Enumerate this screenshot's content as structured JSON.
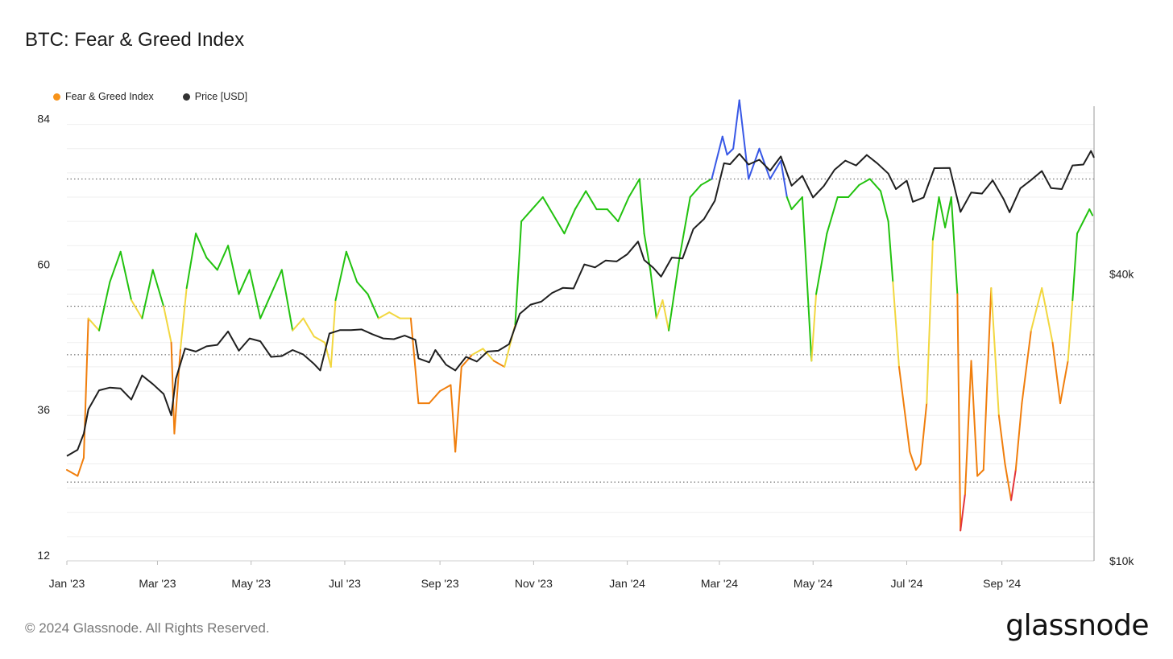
{
  "title": "BTC: Fear & Greed Index",
  "footer": "© 2024 Glassnode. All Rights Reserved.",
  "brand": "glassnode",
  "legend": [
    {
      "label": "Fear & Greed Index",
      "color": "#f7931a"
    },
    {
      "label": "Price [USD]",
      "color": "#333333"
    }
  ],
  "chart_data": {
    "type": "line",
    "title": "BTC: Fear & Greed Index",
    "x_ticks": [
      "Jan '23",
      "Mar '23",
      "May '23",
      "Jul '23",
      "Sep '23",
      "Nov '23",
      "Jan '24",
      "Mar '24",
      "May '24",
      "Jul '24",
      "Sep '24"
    ],
    "y_left": {
      "ticks": [
        12,
        36,
        60,
        84
      ],
      "range": [
        12,
        87
      ]
    },
    "y_right": {
      "ticks": [
        "$10k",
        "$40k"
      ],
      "tick_values": [
        10000,
        40000
      ],
      "scale": "log",
      "range": [
        10000,
        90000
      ]
    },
    "threshold_lines": [
      25,
      46,
      54,
      75
    ],
    "grid": true,
    "color_bands": [
      {
        "min": 0,
        "max": 25,
        "color": "#e3343b"
      },
      {
        "min": 25,
        "max": 46,
        "color": "#f07e0c"
      },
      {
        "min": 46,
        "max": 54,
        "color": "#f2d740"
      },
      {
        "min": 54,
        "max": 75,
        "color": "#22c20f"
      },
      {
        "min": 75,
        "max": 100,
        "color": "#3858e6"
      }
    ],
    "series": [
      {
        "name": "Fear & Greed Index",
        "axis": "left",
        "points": [
          [
            "2023-01-01",
            27
          ],
          [
            "2023-01-08",
            26
          ],
          [
            "2023-01-12",
            29
          ],
          [
            "2023-01-15",
            52
          ],
          [
            "2023-01-22",
            50
          ],
          [
            "2023-01-29",
            58
          ],
          [
            "2023-02-05",
            63
          ],
          [
            "2023-02-12",
            55
          ],
          [
            "2023-02-19",
            52
          ],
          [
            "2023-02-26",
            60
          ],
          [
            "2023-03-05",
            54
          ],
          [
            "2023-03-10",
            48
          ],
          [
            "2023-03-12",
            33
          ],
          [
            "2023-03-16",
            47
          ],
          [
            "2023-03-20",
            57
          ],
          [
            "2023-03-26",
            66
          ],
          [
            "2023-04-02",
            62
          ],
          [
            "2023-04-09",
            60
          ],
          [
            "2023-04-16",
            64
          ],
          [
            "2023-04-23",
            56
          ],
          [
            "2023-04-30",
            60
          ],
          [
            "2023-05-07",
            52
          ],
          [
            "2023-05-14",
            56
          ],
          [
            "2023-05-21",
            60
          ],
          [
            "2023-05-28",
            50
          ],
          [
            "2023-06-04",
            52
          ],
          [
            "2023-06-11",
            49
          ],
          [
            "2023-06-18",
            48
          ],
          [
            "2023-06-22",
            44
          ],
          [
            "2023-06-25",
            55
          ],
          [
            "2023-07-02",
            63
          ],
          [
            "2023-07-09",
            58
          ],
          [
            "2023-07-16",
            56
          ],
          [
            "2023-07-23",
            52
          ],
          [
            "2023-07-30",
            53
          ],
          [
            "2023-08-06",
            52
          ],
          [
            "2023-08-13",
            52
          ],
          [
            "2023-08-18",
            38
          ],
          [
            "2023-08-25",
            38
          ],
          [
            "2023-09-01",
            40
          ],
          [
            "2023-09-08",
            41
          ],
          [
            "2023-09-11",
            30
          ],
          [
            "2023-09-15",
            44
          ],
          [
            "2023-09-22",
            46
          ],
          [
            "2023-09-29",
            47
          ],
          [
            "2023-10-06",
            45
          ],
          [
            "2023-10-13",
            44
          ],
          [
            "2023-10-20",
            51
          ],
          [
            "2023-10-24",
            68
          ],
          [
            "2023-10-31",
            70
          ],
          [
            "2023-11-07",
            72
          ],
          [
            "2023-11-14",
            69
          ],
          [
            "2023-11-21",
            66
          ],
          [
            "2023-11-28",
            70
          ],
          [
            "2023-12-05",
            73
          ],
          [
            "2023-12-12",
            70
          ],
          [
            "2023-12-19",
            70
          ],
          [
            "2023-12-26",
            68
          ],
          [
            "2024-01-02",
            72
          ],
          [
            "2024-01-09",
            75
          ],
          [
            "2024-01-12",
            66
          ],
          [
            "2024-01-16",
            60
          ],
          [
            "2024-01-20",
            52
          ],
          [
            "2024-01-24",
            55
          ],
          [
            "2024-01-28",
            50
          ],
          [
            "2024-02-04",
            62
          ],
          [
            "2024-02-11",
            72
          ],
          [
            "2024-02-18",
            74
          ],
          [
            "2024-02-25",
            75
          ],
          [
            "2024-03-03",
            82
          ],
          [
            "2024-03-06",
            79
          ],
          [
            "2024-03-10",
            80
          ],
          [
            "2024-03-14",
            88
          ],
          [
            "2024-03-20",
            75
          ],
          [
            "2024-03-27",
            80
          ],
          [
            "2024-04-03",
            75
          ],
          [
            "2024-04-10",
            78
          ],
          [
            "2024-04-14",
            72
          ],
          [
            "2024-04-17",
            70
          ],
          [
            "2024-04-24",
            72
          ],
          [
            "2024-04-30",
            45
          ],
          [
            "2024-05-03",
            56
          ],
          [
            "2024-05-10",
            66
          ],
          [
            "2024-05-17",
            72
          ],
          [
            "2024-05-24",
            72
          ],
          [
            "2024-05-31",
            74
          ],
          [
            "2024-06-07",
            75
          ],
          [
            "2024-06-14",
            73
          ],
          [
            "2024-06-19",
            68
          ],
          [
            "2024-06-22",
            58
          ],
          [
            "2024-06-26",
            44
          ],
          [
            "2024-07-03",
            30
          ],
          [
            "2024-07-07",
            27
          ],
          [
            "2024-07-10",
            28
          ],
          [
            "2024-07-14",
            38
          ],
          [
            "2024-07-18",
            65
          ],
          [
            "2024-07-22",
            72
          ],
          [
            "2024-07-26",
            67
          ],
          [
            "2024-07-30",
            72
          ],
          [
            "2024-08-03",
            56
          ],
          [
            "2024-08-05",
            17
          ],
          [
            "2024-08-08",
            23
          ],
          [
            "2024-08-12",
            45
          ],
          [
            "2024-08-16",
            26
          ],
          [
            "2024-08-20",
            27
          ],
          [
            "2024-08-25",
            57
          ],
          [
            "2024-08-30",
            36
          ],
          [
            "2024-09-03",
            28
          ],
          [
            "2024-09-07",
            22
          ],
          [
            "2024-09-10",
            27
          ],
          [
            "2024-09-14",
            38
          ],
          [
            "2024-09-20",
            50
          ],
          [
            "2024-09-27",
            57
          ],
          [
            "2024-10-04",
            48
          ],
          [
            "2024-10-09",
            38
          ],
          [
            "2024-10-14",
            45
          ],
          [
            "2024-10-17",
            55
          ],
          [
            "2024-10-20",
            66
          ],
          [
            "2024-10-24",
            68
          ],
          [
            "2024-10-28",
            70
          ],
          [
            "2024-10-30",
            69
          ]
        ]
      },
      {
        "name": "Price [USD]",
        "axis": "right",
        "points": [
          [
            "2023-01-01",
            16600
          ],
          [
            "2023-01-08",
            17100
          ],
          [
            "2023-01-12",
            18500
          ],
          [
            "2023-01-15",
            20800
          ],
          [
            "2023-01-22",
            22800
          ],
          [
            "2023-01-29",
            23100
          ],
          [
            "2023-02-05",
            23000
          ],
          [
            "2023-02-12",
            21800
          ],
          [
            "2023-02-19",
            24500
          ],
          [
            "2023-02-26",
            23500
          ],
          [
            "2023-03-05",
            22400
          ],
          [
            "2023-03-10",
            20200
          ],
          [
            "2023-03-13",
            24100
          ],
          [
            "2023-03-19",
            27900
          ],
          [
            "2023-03-26",
            27500
          ],
          [
            "2023-04-02",
            28200
          ],
          [
            "2023-04-09",
            28400
          ],
          [
            "2023-04-16",
            30300
          ],
          [
            "2023-04-23",
            27600
          ],
          [
            "2023-04-30",
            29300
          ],
          [
            "2023-05-07",
            28900
          ],
          [
            "2023-05-14",
            26800
          ],
          [
            "2023-05-21",
            26900
          ],
          [
            "2023-05-28",
            27700
          ],
          [
            "2023-06-04",
            27100
          ],
          [
            "2023-06-11",
            25900
          ],
          [
            "2023-06-15",
            25100
          ],
          [
            "2023-06-21",
            30000
          ],
          [
            "2023-06-28",
            30500
          ],
          [
            "2023-07-05",
            30500
          ],
          [
            "2023-07-12",
            30600
          ],
          [
            "2023-07-19",
            29900
          ],
          [
            "2023-07-26",
            29300
          ],
          [
            "2023-08-02",
            29200
          ],
          [
            "2023-08-09",
            29700
          ],
          [
            "2023-08-16",
            29100
          ],
          [
            "2023-08-18",
            26600
          ],
          [
            "2023-08-25",
            26100
          ],
          [
            "2023-08-29",
            27700
          ],
          [
            "2023-09-05",
            25800
          ],
          [
            "2023-09-11",
            25100
          ],
          [
            "2023-09-18",
            26800
          ],
          [
            "2023-09-25",
            26200
          ],
          [
            "2023-10-02",
            27500
          ],
          [
            "2023-10-09",
            27600
          ],
          [
            "2023-10-16",
            28500
          ],
          [
            "2023-10-23",
            33000
          ],
          [
            "2023-10-30",
            34500
          ],
          [
            "2023-11-06",
            35000
          ],
          [
            "2023-11-13",
            36500
          ],
          [
            "2023-11-20",
            37400
          ],
          [
            "2023-11-27",
            37300
          ],
          [
            "2023-12-04",
            41900
          ],
          [
            "2023-12-11",
            41300
          ],
          [
            "2023-12-18",
            42700
          ],
          [
            "2023-12-25",
            42500
          ],
          [
            "2024-01-01",
            44000
          ],
          [
            "2024-01-08",
            46800
          ],
          [
            "2024-01-12",
            42800
          ],
          [
            "2024-01-18",
            41200
          ],
          [
            "2024-01-23",
            39500
          ],
          [
            "2024-01-30",
            43300
          ],
          [
            "2024-02-06",
            43100
          ],
          [
            "2024-02-13",
            49700
          ],
          [
            "2024-02-20",
            52200
          ],
          [
            "2024-02-27",
            57000
          ],
          [
            "2024-03-04",
            68300
          ],
          [
            "2024-03-08",
            68000
          ],
          [
            "2024-03-14",
            71500
          ],
          [
            "2024-03-20",
            67900
          ],
          [
            "2024-03-27",
            69500
          ],
          [
            "2024-04-03",
            65900
          ],
          [
            "2024-04-10",
            70600
          ],
          [
            "2024-04-17",
            61300
          ],
          [
            "2024-04-24",
            64300
          ],
          [
            "2024-05-01",
            57900
          ],
          [
            "2024-05-08",
            61200
          ],
          [
            "2024-05-15",
            66200
          ],
          [
            "2024-05-22",
            69200
          ],
          [
            "2024-05-29",
            67600
          ],
          [
            "2024-06-05",
            71100
          ],
          [
            "2024-06-12",
            68200
          ],
          [
            "2024-06-19",
            65000
          ],
          [
            "2024-06-24",
            60300
          ],
          [
            "2024-07-01",
            62800
          ],
          [
            "2024-07-05",
            56700
          ],
          [
            "2024-07-12",
            57900
          ],
          [
            "2024-07-19",
            66700
          ],
          [
            "2024-07-29",
            66800
          ],
          [
            "2024-08-05",
            54000
          ],
          [
            "2024-08-12",
            59300
          ],
          [
            "2024-08-19",
            59000
          ],
          [
            "2024-08-26",
            62900
          ],
          [
            "2024-09-02",
            57500
          ],
          [
            "2024-09-06",
            53900
          ],
          [
            "2024-09-13",
            60500
          ],
          [
            "2024-09-20",
            63000
          ],
          [
            "2024-09-27",
            65800
          ],
          [
            "2024-10-03",
            60600
          ],
          [
            "2024-10-10",
            60300
          ],
          [
            "2024-10-17",
            67600
          ],
          [
            "2024-10-24",
            67900
          ],
          [
            "2024-10-29",
            72500
          ],
          [
            "2024-10-31",
            70200
          ]
        ]
      }
    ]
  }
}
